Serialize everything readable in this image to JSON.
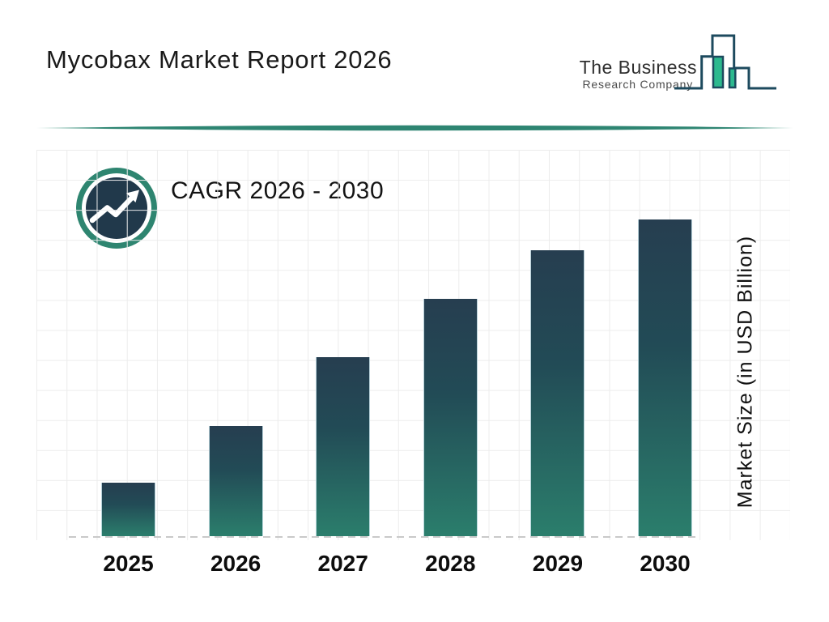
{
  "header": {
    "title": "Mycobax Market Report 2026",
    "logo": {
      "line1": "The Business",
      "line2": "Research Company",
      "icon": "skyline-bars-logo-icon"
    }
  },
  "annotation": {
    "cagr_label": "CAGR 2026 - 2030",
    "icon": "trending-up-icon"
  },
  "axis": {
    "y_label": "Market Size (in USD Billion)"
  },
  "colors": {
    "bar_gradient_top": "#263e50",
    "bar_gradient_bottom": "#2b7e6c",
    "divider_teal": "#2e8572",
    "icon_ring_green": "#2e8570",
    "icon_disc_navy": "#21394b",
    "logo_outline": "#1d4a5e",
    "logo_green_fill": "#2cb98e",
    "grid_line": "#ececec",
    "baseline_dash": "#c9c9c9",
    "text": "#111111",
    "background": "#ffffff"
  },
  "chart_data": {
    "type": "bar",
    "title": "Mycobax Market Report 2026",
    "categories": [
      "2025",
      "2026",
      "2027",
      "2028",
      "2029",
      "2030"
    ],
    "values": [
      16.9,
      34.8,
      56.5,
      74.9,
      90.3,
      100
    ],
    "unit": "relative bar height, % of tallest bar (no numeric y-axis ticks shown)",
    "xlabel": "",
    "ylabel": "Market Size (in USD Billion)",
    "annotation": "CAGR 2026 - 2030",
    "grid": true,
    "legend_position": "none",
    "y_axis_ticks": "none",
    "bar_gradient": [
      "#263e50",
      "#2b7e6c"
    ]
  }
}
